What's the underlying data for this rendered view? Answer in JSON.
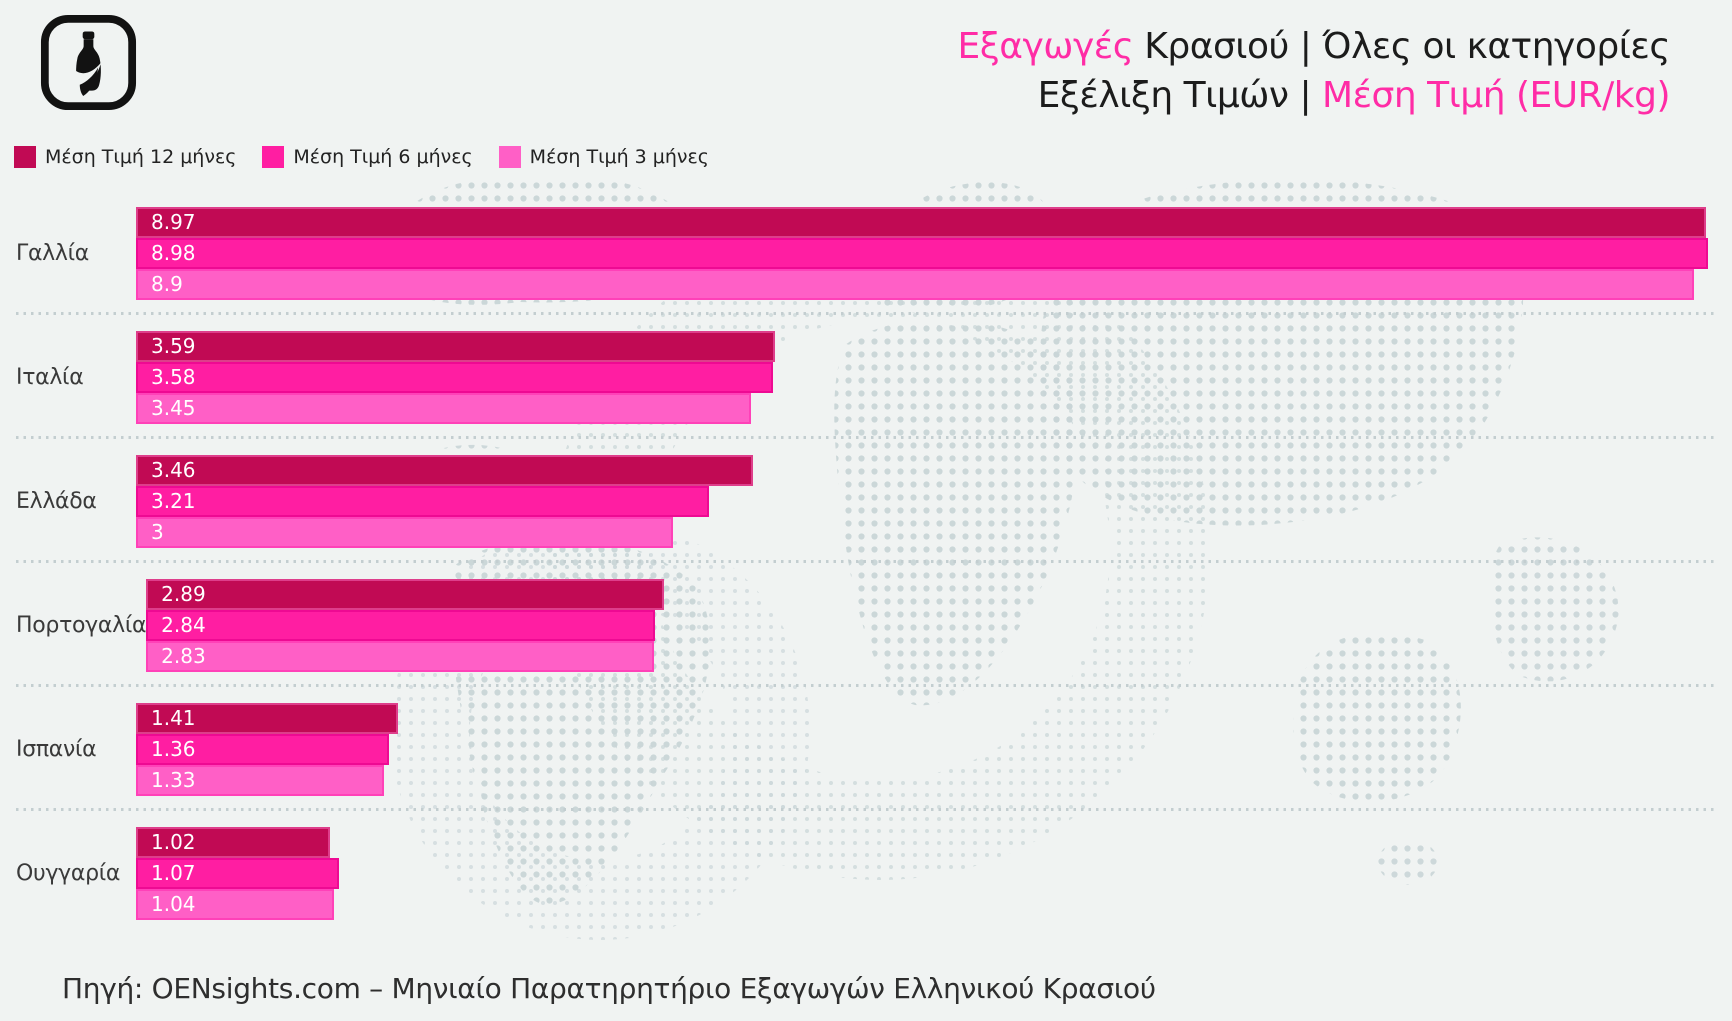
{
  "header": {
    "line1": {
      "accent": "Εξαγωγές",
      "rest": " Κρασιού | Όλες οι κατηγορίες"
    },
    "line2": {
      "rest": "Εξέλιξη Τιμών | ",
      "accent": "Μέση Τιμή (EUR/kg)"
    }
  },
  "legend": {
    "items": [
      {
        "label": "Μέση Τιμή 12 μήνες",
        "color": "#C10A54"
      },
      {
        "label": "Μέση Τιμή 6 μήνες",
        "color": "#FF1EA2"
      },
      {
        "label": "Μέση Τιμή 3 μήνες",
        "color": "#FF5FC6"
      }
    ]
  },
  "footer": {
    "source_text": "Πηγή: OENsights.com – Μηνιαίο Παρατηρητήριο Εξαγωγών Ελληνικού Κρασιού"
  },
  "colors": {
    "accent_pink": "#FF2CA6",
    "background": "#F0F3F2",
    "map_dots": "#C9D5D7",
    "series_12m": "#C10A54",
    "series_6m": "#FF1EA2",
    "series_3m": "#FF5FC6"
  },
  "chart_data": {
    "type": "bar",
    "orientation": "horizontal",
    "title": "Εξαγωγές Κρασιού | Όλες οι κατηγορίες — Εξέλιξη Τιμών | Μέση Τιμή (EUR/kg)",
    "unit": "EUR/kg",
    "categories": [
      "Γαλλία",
      "Ιταλία",
      "Ελλάδα",
      "Πορτογαλία",
      "Ισπανία",
      "Ουγγαρία"
    ],
    "series": [
      {
        "name": "Μέση Τιμή 12 μήνες",
        "color": "#C10A54",
        "edge": "#DE3E8B",
        "values": [
          8.97,
          3.59,
          3.46,
          2.89,
          1.41,
          1.02
        ],
        "labels": [
          "8.97",
          "3.59",
          "3.46",
          "2.89",
          "1.41",
          "1.02"
        ]
      },
      {
        "name": "Μέση Τιμή 6 μήνες",
        "color": "#FF1EA2",
        "edge": "#EE0A93",
        "values": [
          8.98,
          3.58,
          3.21,
          2.84,
          1.36,
          1.07
        ],
        "labels": [
          "8.98",
          "3.58",
          "3.21",
          "2.84",
          "1.36",
          "1.07"
        ]
      },
      {
        "name": "Μέση Τιμή 3 μήνες",
        "color": "#FF5FC6",
        "edge": "#FF41B8",
        "values": [
          8.9,
          3.45,
          3.0,
          2.83,
          1.33,
          1.04
        ],
        "labels": [
          "8.9",
          "3.45",
          "3",
          "2.83",
          "1.33",
          "1.04"
        ]
      }
    ],
    "xlim": [
      0,
      9
    ],
    "grid": false,
    "legend_position": "top-left",
    "value_labels": "inside-start"
  }
}
